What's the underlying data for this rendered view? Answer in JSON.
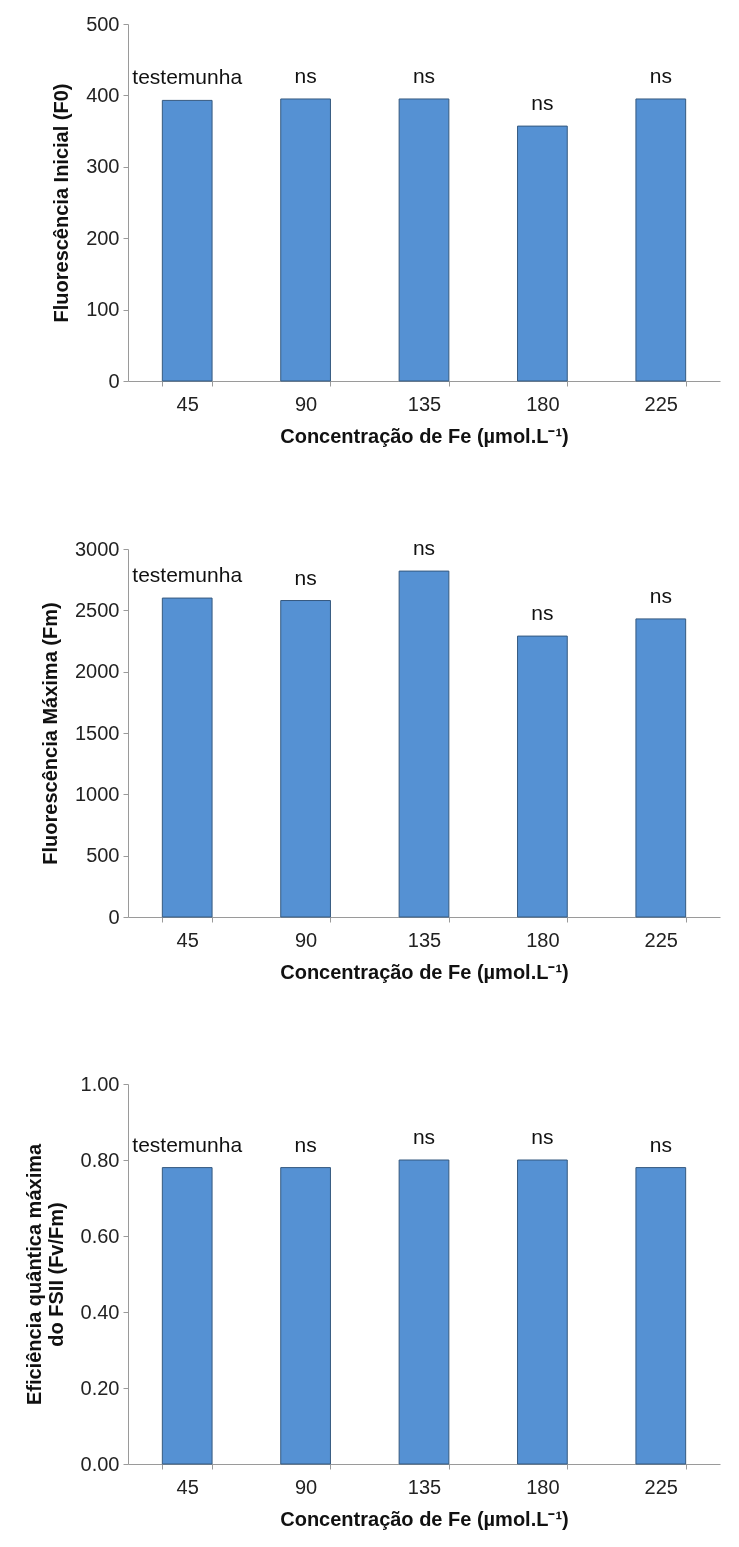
{
  "chart_data": [
    {
      "type": "bar",
      "categories": [
        "45",
        "90",
        "135",
        "180",
        "225"
      ],
      "values": [
        393,
        395,
        395,
        357,
        395
      ],
      "color": "#5591d3",
      "ylim": [
        0,
        500
      ],
      "yticks": [
        0,
        100,
        200,
        300,
        400,
        500
      ],
      "grid": false,
      "ylabel": "Fluorescência Inicial (F0)",
      "xlabel": "Concentração de Fe (µmol.L⁻¹)",
      "annotations": [
        {
          "text": "testemunha",
          "x": "45",
          "y": 393
        },
        {
          "text": "ns",
          "x": "90",
          "y": 395
        },
        {
          "text": "ns",
          "x": "135",
          "y": 395
        },
        {
          "text": "ns",
          "x": "180",
          "y": 357
        },
        {
          "text": "ns",
          "x": "225",
          "y": 395
        }
      ]
    },
    {
      "type": "bar",
      "categories": [
        "45",
        "90",
        "135",
        "180",
        "225"
      ],
      "values": [
        2600,
        2580,
        2820,
        2290,
        2430
      ],
      "color": "#5591d3",
      "ylim": [
        0,
        3000
      ],
      "yticks": [
        0,
        500,
        1000,
        1500,
        2000,
        2500,
        3000
      ],
      "grid": false,
      "ylabel": "Fluorescência Máxima (Fm)",
      "xlabel": "Concentração de Fe (µmol.L⁻¹)",
      "annotations": [
        {
          "text": "testemunha",
          "x": "45",
          "y": 2600
        },
        {
          "text": "ns",
          "x": "90",
          "y": 2580
        },
        {
          "text": "ns",
          "x": "135",
          "y": 2820
        },
        {
          "text": "ns",
          "x": "180",
          "y": 2290
        },
        {
          "text": "ns",
          "x": "225",
          "y": 2430
        }
      ]
    },
    {
      "type": "bar",
      "categories": [
        "45",
        "90",
        "135",
        "180",
        "225"
      ],
      "values": [
        0.78,
        0.78,
        0.8,
        0.8,
        0.78
      ],
      "color": "#5591d3",
      "ylim": [
        0,
        1
      ],
      "yticks": [
        {
          "value": 0,
          "label": "0.00"
        },
        {
          "value": 0.2,
          "label": "0.20"
        },
        {
          "value": 0.4,
          "label": "0.40"
        },
        {
          "value": 0.6,
          "label": "0.60"
        },
        {
          "value": 0.8,
          "label": "0.80"
        },
        {
          "value": 1,
          "label": "1.00"
        }
      ],
      "grid": false,
      "ylabel": "Eficiência quântica máxima\ndo  FSII (Fv/Fm)",
      "xlabel": "Concentração de Fe (µmol.L⁻¹)",
      "annotations": [
        {
          "text": "testemunha",
          "x": "45",
          "y": 0.78
        },
        {
          "text": "ns",
          "x": "90",
          "y": 0.78
        },
        {
          "text": "ns",
          "x": "135",
          "y": 0.8
        },
        {
          "text": "ns",
          "x": "180",
          "y": 0.8
        },
        {
          "text": "ns",
          "x": "225",
          "y": 0.78
        }
      ]
    }
  ]
}
